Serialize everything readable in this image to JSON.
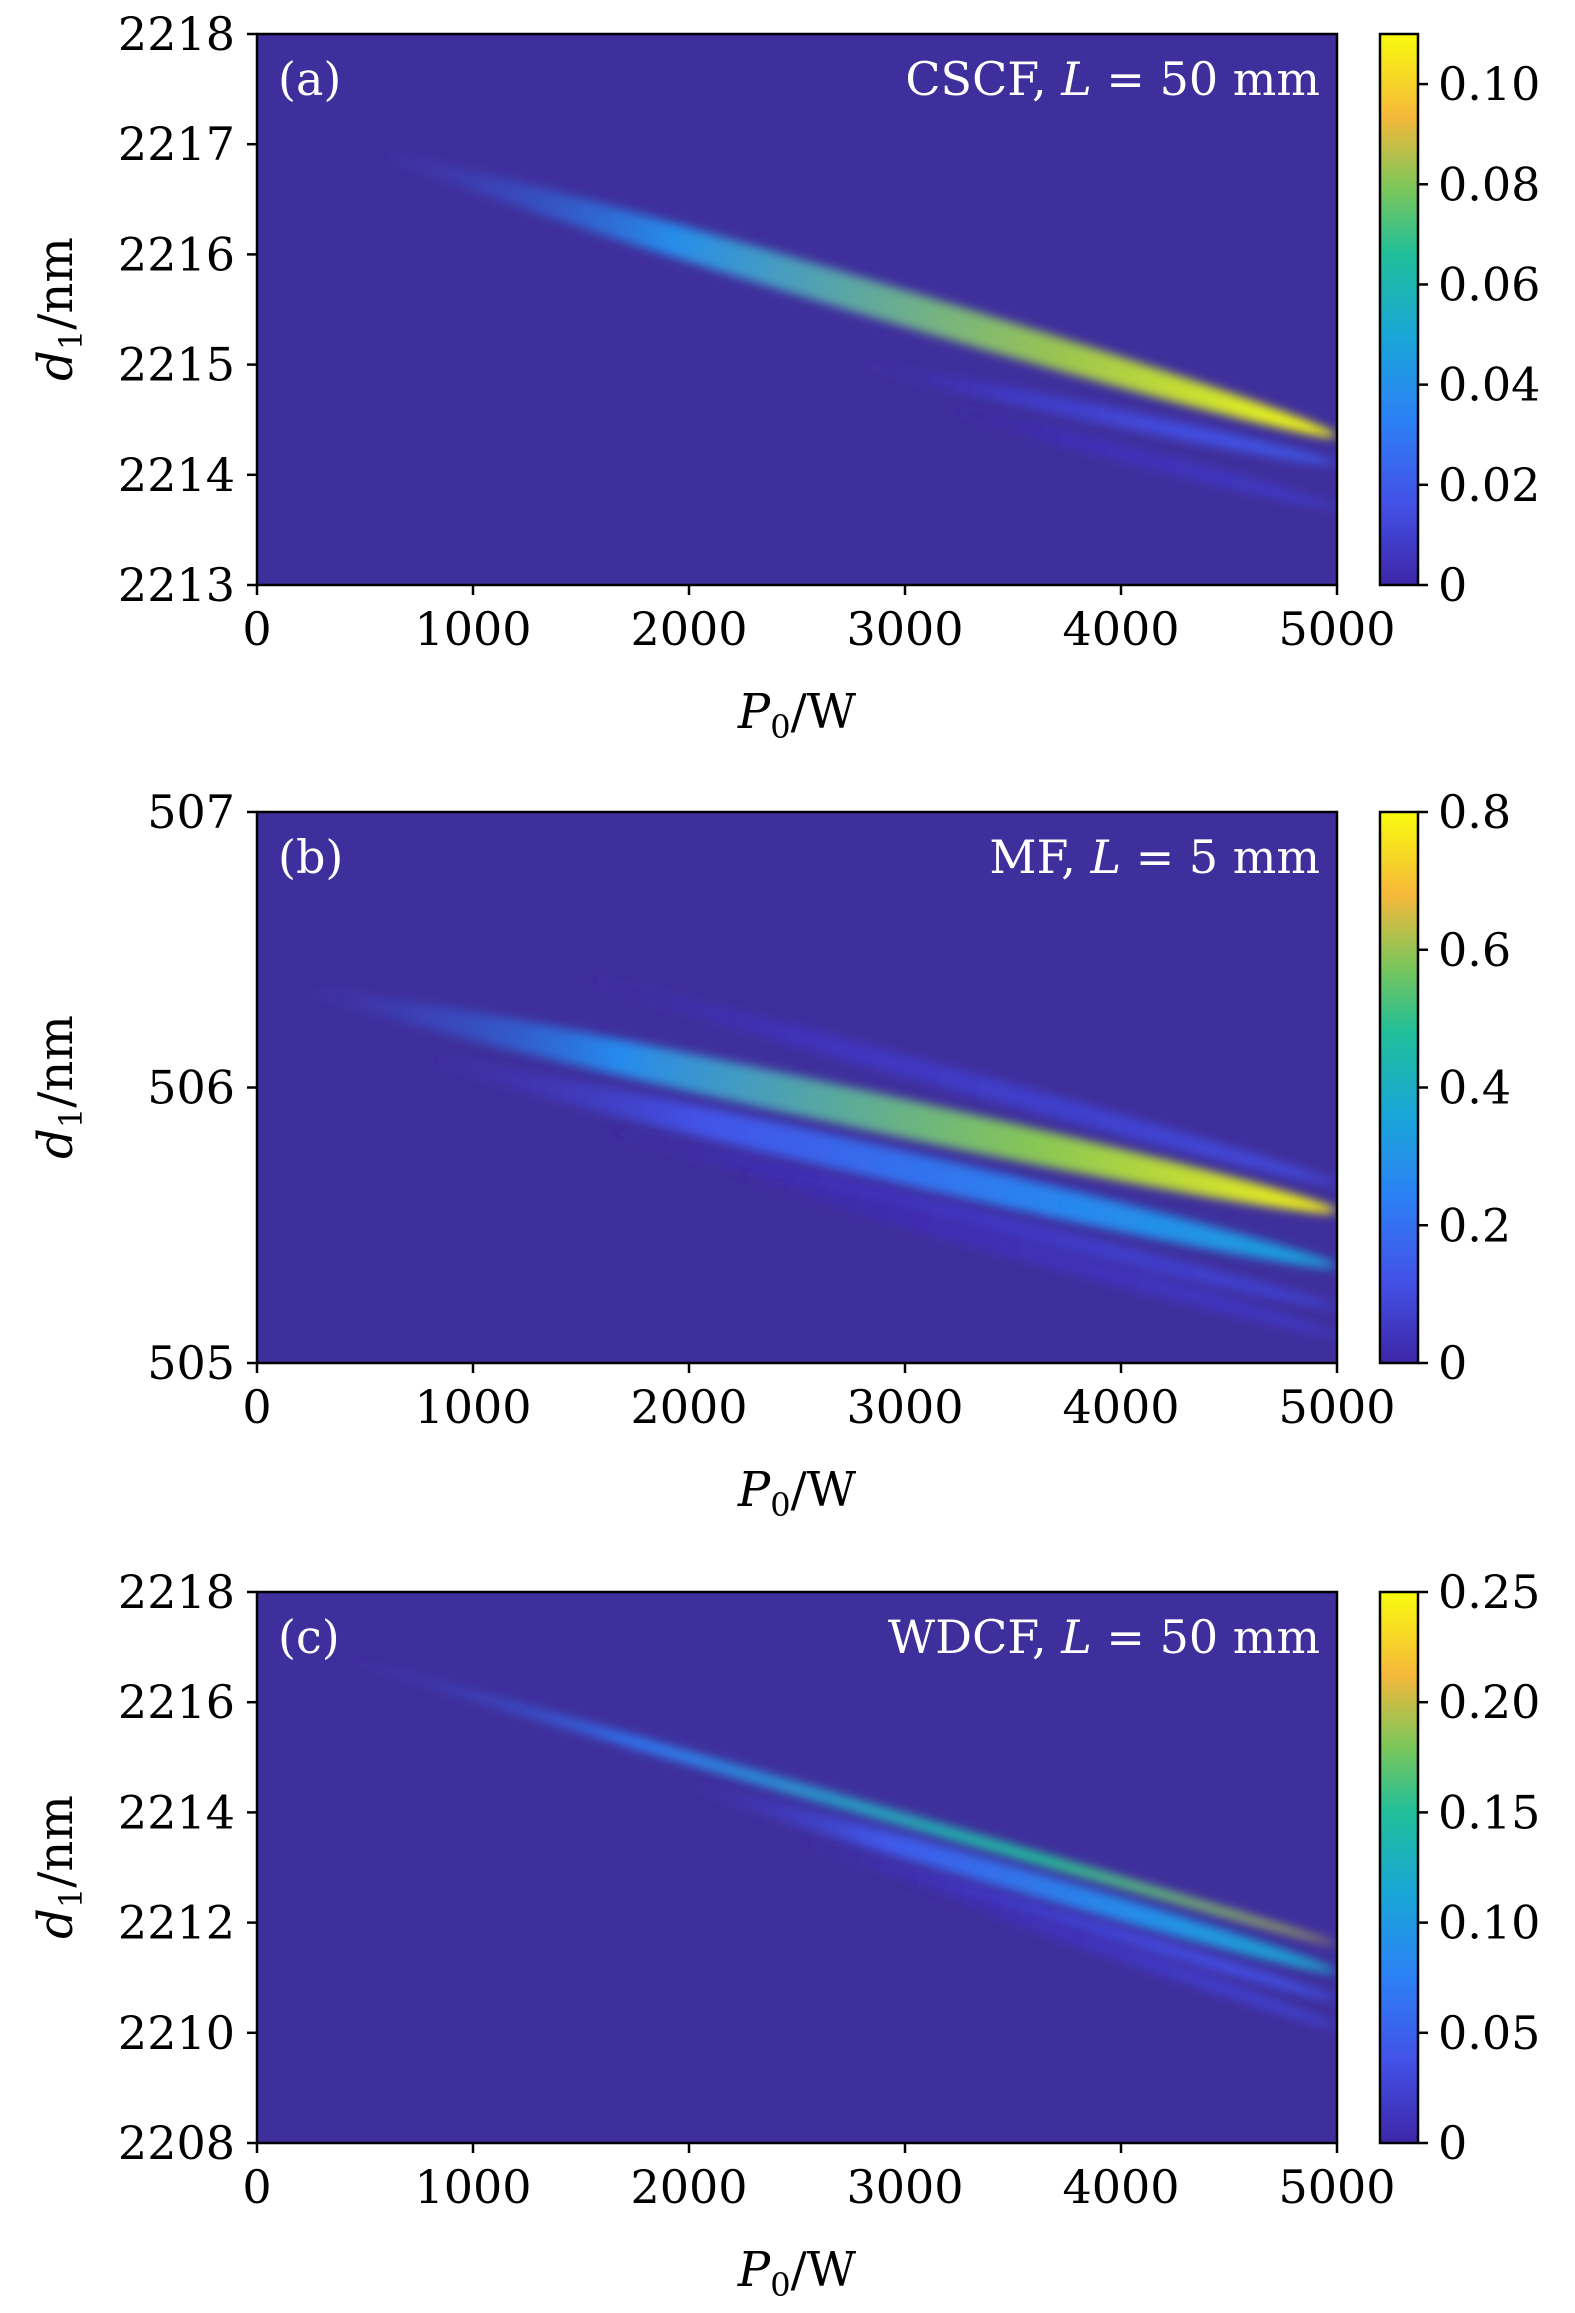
{
  "chart_data": [
    {
      "type": "heatmap",
      "panel_label": "(a)",
      "annotation": "CSCF, L = 50 mm",
      "annotation_parts": {
        "fiber": "CSCF,",
        "var": "L",
        "rest": " = 50 mm"
      },
      "xlabel": "P0/W",
      "ylabel": "d1/nm",
      "xlim": [
        0,
        5000
      ],
      "ylim": [
        2213,
        2218
      ],
      "xticks": [
        "0",
        "1000",
        "2000",
        "3000",
        "4000",
        "5000"
      ],
      "yticks": [
        "2213",
        "2214",
        "2215",
        "2216",
        "2217",
        "2218"
      ],
      "colorbar": {
        "range": [
          0,
          0.11
        ],
        "ticks": [
          "0",
          "0.02",
          "0.04",
          "0.06",
          "0.08",
          "0.10"
        ],
        "tick_values": [
          0,
          0.02,
          0.04,
          0.06,
          0.08,
          0.1
        ]
      },
      "ridges": [
        {
          "name": "main",
          "start": [
            600,
            2216.9
          ],
          "end": [
            5000,
            2214.35
          ],
          "peak": 0.11,
          "width": 0.16
        },
        {
          "name": "lower side",
          "start": [
            2800,
            2215.0
          ],
          "end": [
            5000,
            2214.1
          ],
          "peak": 0.02,
          "width": 0.08
        },
        {
          "name": "lower faint",
          "start": [
            3200,
            2214.6
          ],
          "end": [
            5000,
            2213.7
          ],
          "peak": 0.008,
          "width": 0.08
        }
      ]
    },
    {
      "type": "heatmap",
      "panel_label": "(b)",
      "annotation": "MF, L = 5 mm",
      "annotation_parts": {
        "fiber": "MF,",
        "var": "L",
        "rest": " = 5 mm"
      },
      "xlabel": "P0/W",
      "ylabel": "d1/nm",
      "xlim": [
        0,
        5000
      ],
      "ylim": [
        505,
        507
      ],
      "xticks": [
        "0",
        "1000",
        "2000",
        "3000",
        "4000",
        "5000"
      ],
      "yticks": [
        "505",
        "506",
        "507"
      ],
      "colorbar": {
        "range": [
          0,
          0.8
        ],
        "ticks": [
          "0",
          "0.2",
          "0.4",
          "0.6",
          "0.8"
        ],
        "tick_values": [
          0,
          0.2,
          0.4,
          0.6,
          0.8
        ]
      },
      "ridges": [
        {
          "name": "main",
          "start": [
            250,
            506.35
          ],
          "end": [
            5000,
            505.55
          ],
          "peak": 0.78,
          "width": 0.07
        },
        {
          "name": "second",
          "start": [
            800,
            506.1
          ],
          "end": [
            5000,
            505.35
          ],
          "peak": 0.35,
          "width": 0.06
        },
        {
          "name": "upper",
          "start": [
            1500,
            506.4
          ],
          "end": [
            5000,
            505.65
          ],
          "peak": 0.1,
          "width": 0.04
        },
        {
          "name": "lower 1",
          "start": [
            1600,
            505.85
          ],
          "end": [
            5000,
            505.2
          ],
          "peak": 0.08,
          "width": 0.04
        },
        {
          "name": "lower 2",
          "start": [
            2200,
            505.7
          ],
          "end": [
            5000,
            505.1
          ],
          "peak": 0.05,
          "width": 0.04
        }
      ]
    },
    {
      "type": "heatmap",
      "panel_label": "(c)",
      "annotation": "WDCF, L = 50 mm",
      "annotation_parts": {
        "fiber": "WDCF,",
        "var": "L",
        "rest": " = 50 mm"
      },
      "xlabel": "P0/W",
      "ylabel": "d1/nm",
      "xlim": [
        0,
        5000
      ],
      "ylim": [
        2208,
        2218
      ],
      "xticks": [
        "0",
        "1000",
        "2000",
        "3000",
        "4000",
        "5000"
      ],
      "yticks": [
        "2208",
        "2210",
        "2212",
        "2214",
        "2216",
        "2218"
      ],
      "colorbar": {
        "range": [
          0,
          0.25
        ],
        "ticks": [
          "0",
          "0.05",
          "0.10",
          "0.15",
          "0.20",
          "0.25"
        ],
        "tick_values": [
          0,
          0.05,
          0.1,
          0.15,
          0.2,
          0.25
        ]
      },
      "ridges": [
        {
          "name": "main",
          "start": [
            400,
            2216.8
          ],
          "end": [
            5000,
            2211.6
          ],
          "peak": 0.2,
          "width": 0.12
        },
        {
          "name": "lower",
          "start": [
            2000,
            2214.5
          ],
          "end": [
            5000,
            2211.1
          ],
          "peak": 0.12,
          "width": 0.22
        },
        {
          "name": "faint 1",
          "start": [
            2500,
            2213.5
          ],
          "end": [
            5000,
            2210.6
          ],
          "peak": 0.04,
          "width": 0.15
        },
        {
          "name": "faint 2",
          "start": [
            3000,
            2212.8
          ],
          "end": [
            5000,
            2210.1
          ],
          "peak": 0.025,
          "width": 0.15
        }
      ]
    }
  ]
}
